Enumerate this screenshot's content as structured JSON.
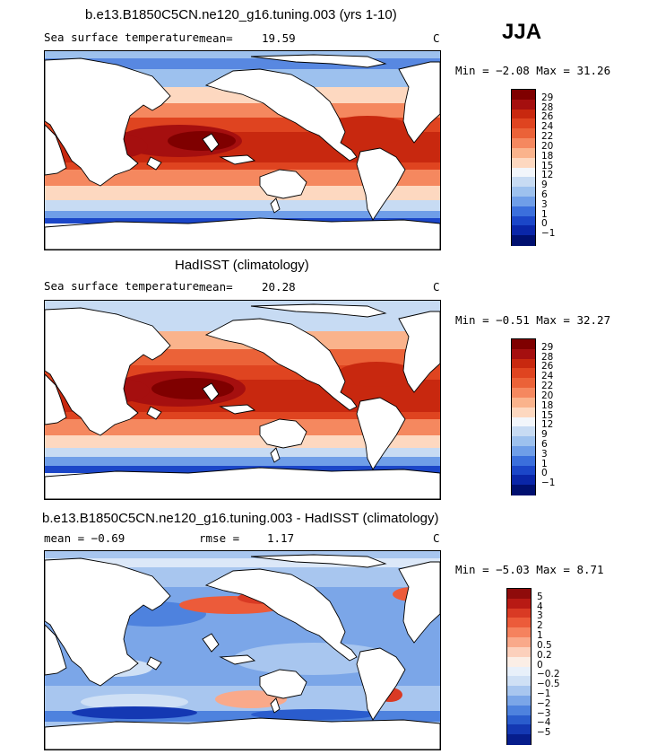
{
  "season": "JJA",
  "panels": [
    {
      "title": "b.e13.B1850C5CN.ne120_g16.tuning.003 (yrs 1-10)",
      "left_label": "Sea surface temperature",
      "mean_label": "mean=",
      "mean_value": "19.59",
      "units": "C",
      "minmax": "Min =  −2.08 Max =  31.26",
      "colorbar_labels": [
        "29",
        "28",
        "26",
        "24",
        "22",
        "20",
        "18",
        "15",
        "12",
        "9",
        "6",
        "3",
        "1",
        "0",
        "−1"
      ],
      "colorbar_colors": [
        "#7f0000",
        "#a50f0f",
        "#c8280f",
        "#df4420",
        "#eb6238",
        "#f5885f",
        "#fab38c",
        "#fdd8c0",
        "#f2f6fb",
        "#c7dbf3",
        "#9dc1ee",
        "#6f9ee8",
        "#3b6fdc",
        "#1b46c8",
        "#0a26a8",
        "#001070"
      ]
    },
    {
      "title": "HadISST (climatology)",
      "left_label": "Sea surface temperature",
      "mean_label": "mean=",
      "mean_value": "20.28",
      "units": "C",
      "minmax": "Min =  −0.51 Max =  32.27",
      "colorbar_labels": [
        "29",
        "28",
        "26",
        "24",
        "22",
        "20",
        "18",
        "15",
        "12",
        "9",
        "6",
        "3",
        "1",
        "0",
        "−1"
      ],
      "colorbar_colors": [
        "#7f0000",
        "#a50f0f",
        "#c8280f",
        "#df4420",
        "#eb6238",
        "#f5885f",
        "#fab38c",
        "#fdd8c0",
        "#f2f6fb",
        "#c7dbf3",
        "#9dc1ee",
        "#6f9ee8",
        "#3b6fdc",
        "#1b46c8",
        "#0a26a8",
        "#001070"
      ]
    },
    {
      "title": "b.e13.B1850C5CN.ne120_g16.tuning.003 - HadISST (climatology)",
      "left_label": "mean =   −0.69",
      "rmse_label": "rmse =",
      "rmse_value": "1.17",
      "units": "C",
      "minmax": "Min =  −5.03 Max =   8.71",
      "colorbar_labels": [
        "5",
        "4",
        "3",
        "2",
        "1",
        "0.5",
        "0.2",
        "0",
        "−0.2",
        "−0.5",
        "−1",
        "−2",
        "−3",
        "−4",
        "−5"
      ],
      "colorbar_colors": [
        "#8f0b0b",
        "#b81a14",
        "#d93a24",
        "#ec5b3a",
        "#f5825e",
        "#f9a98a",
        "#fcd0bc",
        "#fbeee6",
        "#e8f0fa",
        "#cfe0f5",
        "#a8c6ef",
        "#7ba6e8",
        "#4e82de",
        "#2a5ccd",
        "#1438b3",
        "#061d8c"
      ]
    }
  ]
}
